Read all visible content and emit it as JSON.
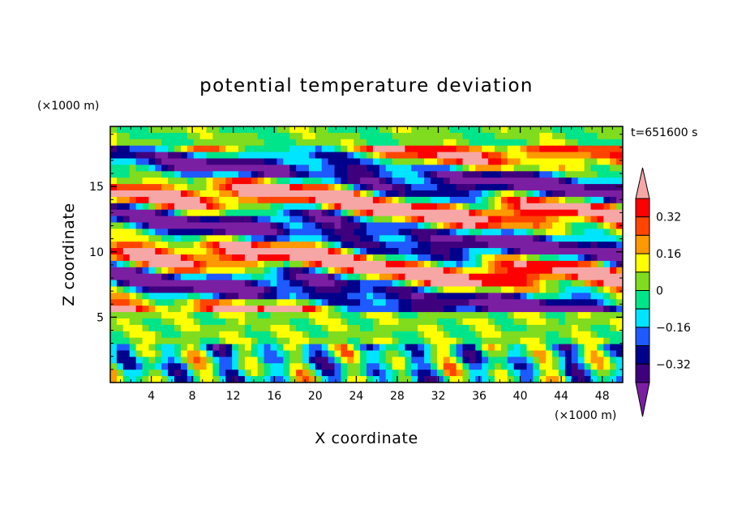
{
  "chart_data": {
    "type": "heatmap",
    "title": "potential temperature deviation",
    "xlabel": "X coordinate",
    "ylabel": "Z coordinate",
    "x_unit": "(×1000 m)",
    "y_unit": "(×1000 m)",
    "time_label": "t=651600 s",
    "xlim": [
      0,
      50
    ],
    "ylim": [
      0,
      19.6
    ],
    "x_ticks": [
      4,
      8,
      12,
      16,
      20,
      24,
      28,
      32,
      36,
      40,
      44,
      48
    ],
    "x_tick_labels": [
      "4",
      "8",
      "12",
      "16",
      "20",
      "24",
      "28",
      "32",
      "36",
      "40",
      "44",
      "48"
    ],
    "y_ticks": [
      5,
      10,
      15
    ],
    "y_tick_labels": [
      "5",
      "10",
      "15"
    ],
    "colorbar": {
      "levels": [
        -0.4,
        -0.32,
        -0.24,
        -0.16,
        -0.08,
        0,
        0.08,
        0.16,
        0.24,
        0.32,
        0.4
      ],
      "labels": [
        "0.32",
        "0.16",
        "0",
        "−0.16",
        "−0.32"
      ],
      "label_values": [
        0.32,
        0.16,
        0,
        -0.16,
        -0.32
      ],
      "colors": [
        "#7b1fa2",
        "#3f007d",
        "#00008b",
        "#1e5aff",
        "#00e5ff",
        "#00e58a",
        "#7fdc1e",
        "#ffff00",
        "#ff9900",
        "#ff4500",
        "#ff0000",
        "#f7a6a6"
      ]
    },
    "field_description_layers": [
      {
        "z_range": [
          0,
          3.2
        ],
        "pattern": "mixed blue/green/red/orange cells"
      },
      {
        "z_range": [
          3.2,
          5.2
        ],
        "pattern": "green/cyan banded layer"
      },
      {
        "z_range": [
          5.2,
          18
        ],
        "pattern": "alternating purple (negative) and pink (positive) lenses"
      },
      {
        "z_range": [
          18,
          19.6
        ],
        "pattern": "light green/cyan smooth waves"
      }
    ]
  }
}
